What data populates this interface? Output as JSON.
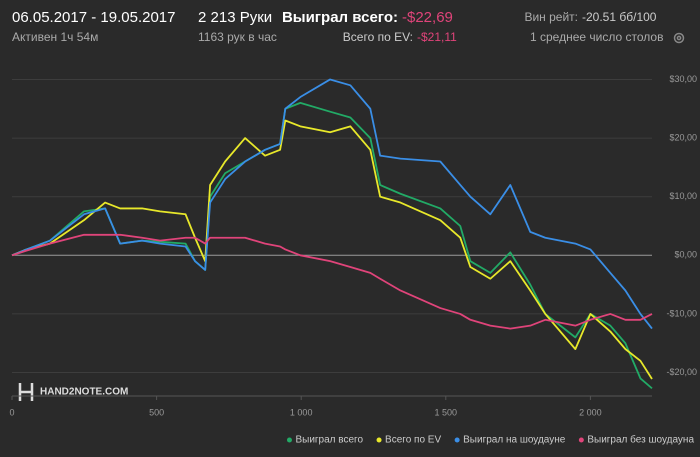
{
  "header": {
    "date_range": "06.05.2017 - 19.05.2017",
    "active": "Активен 1ч 54м",
    "hands": "2 213 Руки",
    "hands_per_hour": "1163 рук в час",
    "won_label": "Выиграл всего:",
    "won_value": "-$22,69",
    "ev_label": "Всего по EV:",
    "ev_value": "-$21,11",
    "winrate_label": "Вин рейт:",
    "winrate_value": "-20.51 бб/100",
    "tables": "1 среднее число столов"
  },
  "logo": "HAND2NOTE.COM",
  "chart_data": {
    "type": "line",
    "x": [
      0,
      50,
      131,
      249,
      322,
      374,
      450,
      512,
      600,
      633,
      668,
      685,
      737,
      806,
      875,
      927,
      945,
      997,
      1100,
      1170,
      1239,
      1273,
      1343,
      1481,
      1550,
      1585,
      1654,
      1723,
      1792,
      1844,
      1948,
      2000,
      2069,
      2121,
      2173,
      2213
    ],
    "series": [
      {
        "name": "Выиграл всего",
        "color": "#22aa66",
        "values": [
          0,
          1,
          2.5,
          7.5,
          8,
          2,
          2.5,
          2.3,
          2,
          -1,
          -2.5,
          10,
          14,
          16,
          18,
          19,
          25,
          26,
          24.5,
          23.5,
          20,
          12,
          10.5,
          8,
          5,
          -1,
          -3,
          0.5,
          -5,
          -10,
          -14,
          -10,
          -12,
          -15,
          -21,
          -22.7
        ]
      },
      {
        "name": "Всего по EV",
        "color": "#e8e82a",
        "values": [
          0,
          1,
          2,
          6,
          9,
          8,
          8,
          7.5,
          7,
          3,
          -1,
          12,
          16,
          20,
          17,
          18,
          23,
          22,
          21,
          22,
          18,
          10,
          9,
          6,
          3,
          -2,
          -4,
          -1,
          -6,
          -10,
          -16,
          -10,
          -13,
          -16,
          -18,
          -21.1
        ]
      },
      {
        "name": "Выиграл на шоудауне",
        "color": "#3a8ee6",
        "values": [
          0,
          1,
          2.5,
          7,
          8,
          2,
          2.5,
          2,
          1.5,
          -1,
          -2.5,
          9,
          13,
          16,
          18,
          19,
          25,
          27,
          30,
          29,
          25,
          17,
          16.5,
          16,
          12,
          10,
          7,
          12,
          4,
          3,
          2,
          1,
          -3,
          -6,
          -10,
          -12.5
        ]
      },
      {
        "name": "Выиграл без шоудауна",
        "color": "#e0447a",
        "values": [
          0,
          0.8,
          2,
          3.5,
          3.5,
          3.5,
          3,
          2.5,
          3,
          3,
          2,
          3,
          3,
          3,
          2,
          1.5,
          1,
          0,
          -1,
          -2,
          -3,
          -4,
          -6,
          -9,
          -10,
          -11,
          -12,
          -12.5,
          -12,
          -11,
          -12,
          -11,
          -10,
          -11,
          -11,
          -10
        ]
      }
    ],
    "xlim": [
      0,
      2213
    ],
    "xticks": [
      0,
      500,
      {
        "value": 1000,
        "label": "1 000"
      },
      {
        "value": 1500,
        "label": "1 500"
      },
      {
        "value": 2000,
        "label": "2 000"
      }
    ],
    "ylim": [
      -24,
      34
    ],
    "yticks": [
      {
        "value": 30,
        "label": "$30,00"
      },
      {
        "value": 20,
        "label": "$20,00"
      },
      {
        "value": 10,
        "label": "$10,00"
      },
      {
        "value": 0,
        "label": "$0,00"
      },
      {
        "value": -10,
        "label": "-$10,00"
      },
      {
        "value": -20,
        "label": "-$20,00"
      }
    ],
    "grid": true
  }
}
